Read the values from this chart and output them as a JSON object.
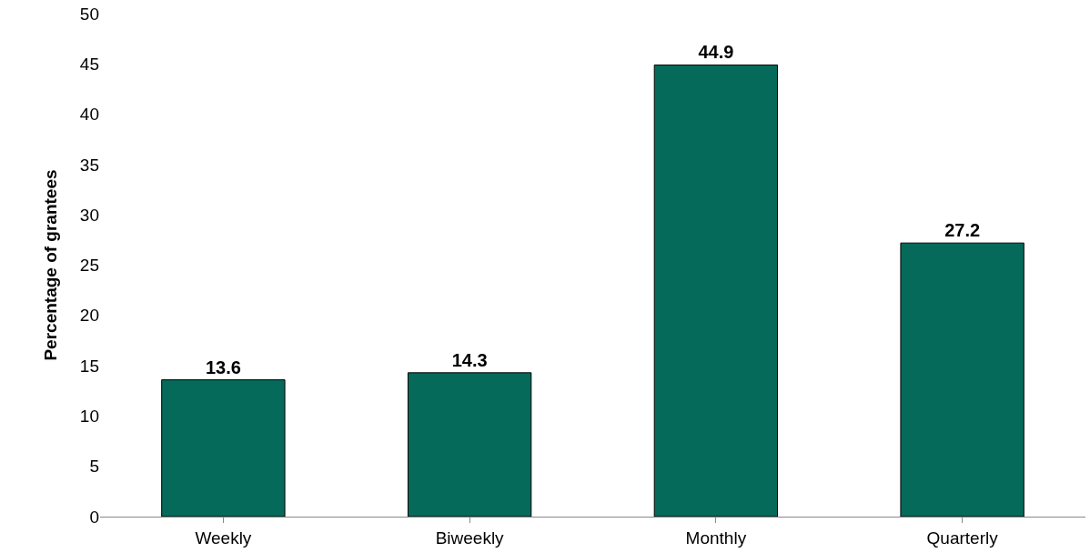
{
  "chart_data": {
    "type": "bar",
    "ylabel": "Percentage of grantees",
    "categories": [
      "Weekly",
      "Biweekly",
      "Monthly",
      "Quarterly"
    ],
    "values": [
      13.6,
      14.3,
      44.9,
      27.2
    ],
    "color": "#066a5a",
    "ylim": [
      0,
      50
    ],
    "yticks": [
      0,
      5,
      10,
      15,
      20,
      25,
      30,
      35,
      40,
      45,
      50
    ],
    "grid": false,
    "data_labels": true
  }
}
